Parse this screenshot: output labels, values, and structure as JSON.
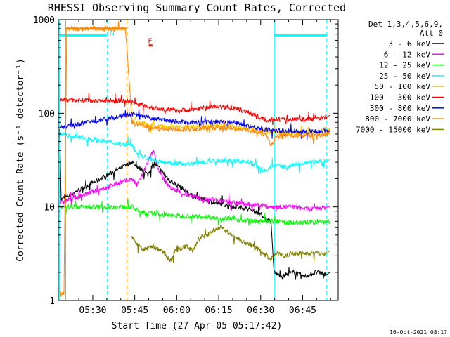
{
  "chart_data": {
    "type": "line",
    "title": "RHESSI Observing Summary Count Rates, Corrected",
    "xlabel": "Start Time (27-Apr-05 05:17:42)",
    "ylabel": "Corrected Count Rate (s⁻¹ detector⁻¹)",
    "x_unit": "minutes",
    "xlim": [
      0,
      100
    ],
    "ylim": [
      1,
      1000
    ],
    "y_scale": "log",
    "x_ticks": [
      {
        "label": "05:30",
        "value": 12.3
      },
      {
        "label": "05:45",
        "value": 27.3
      },
      {
        "label": "06:00",
        "value": 42.3
      },
      {
        "label": "06:15",
        "value": 57.3
      },
      {
        "label": "06:30",
        "value": 72.3
      },
      {
        "label": "06:45",
        "value": 87.3
      }
    ],
    "y_ticks": [
      {
        "label": "1",
        "value": 1
      },
      {
        "label": "10",
        "value": 10
      },
      {
        "label": "100",
        "value": 100
      },
      {
        "label": "1000",
        "value": 1000
      }
    ],
    "legend_header": [
      "Det 1,3,4,5,6,9,",
      "Att 0"
    ],
    "legend_position": "right",
    "timestamp": "16-Oct-2021 08:17",
    "series": [
      {
        "name": "3 - 6 keV",
        "color": "#000000",
        "x": [
          0.5,
          1,
          26.3,
          28,
          30,
          32,
          34,
          36,
          38,
          40,
          44,
          48,
          52,
          56,
          60,
          64,
          68,
          70,
          72,
          74,
          76,
          77,
          80,
          84,
          88,
          92,
          96,
          97
        ],
        "y": [
          68,
          12,
          30,
          27,
          25,
          22,
          30,
          26,
          22,
          19,
          16,
          13,
          12,
          11,
          10.5,
          10,
          9.5,
          9,
          8.5,
          7.5,
          7,
          2,
          1.8,
          2,
          1.8,
          2,
          1.9,
          2
        ]
      },
      {
        "name": "6 - 12 keV",
        "color": "#ff00ff",
        "x": [
          0.5,
          26.3,
          28,
          30,
          32,
          34,
          36,
          38,
          40,
          44,
          48,
          52,
          56,
          60,
          64,
          68,
          72,
          76,
          80,
          84,
          88,
          92,
          96,
          97
        ],
        "y": [
          11,
          20,
          17,
          22,
          30,
          40,
          24,
          19,
          16,
          14,
          13,
          12,
          12,
          11.5,
          11,
          10.5,
          10.5,
          10,
          10,
          10,
          9.5,
          9.5,
          10,
          10
        ]
      },
      {
        "name": "12 - 25 keV",
        "color": "#00ff00",
        "x": [
          0.5,
          26.3,
          30,
          34,
          38,
          42,
          46,
          50,
          54,
          58,
          62,
          66,
          70,
          74,
          78,
          82,
          86,
          90,
          94,
          97
        ],
        "y": [
          10,
          10,
          8.5,
          8.5,
          8.2,
          8,
          8,
          7.8,
          7.8,
          7.5,
          7.5,
          7.2,
          7,
          7,
          7,
          6.8,
          6.8,
          6.8,
          7,
          7
        ]
      },
      {
        "name": "25 - 50 keV",
        "color": "#00ffff",
        "x": [
          0.5,
          26.3,
          28,
          32,
          36,
          40,
          44,
          48,
          52,
          56,
          60,
          64,
          68,
          72,
          74,
          76,
          78,
          80,
          84,
          88,
          92,
          96,
          97
        ],
        "y": [
          60,
          45,
          38,
          33,
          30,
          29,
          29,
          29,
          30,
          31,
          31,
          31,
          30,
          26,
          24,
          27,
          28,
          27,
          28,
          29,
          30,
          31,
          32
        ]
      },
      {
        "name": "50 - 100 keV",
        "color": "#ffcc00",
        "x": [
          26.3,
          30,
          34,
          38,
          42,
          46,
          50,
          54,
          58,
          62,
          66,
          70,
          74,
          78,
          82,
          86,
          90,
          94,
          97
        ],
        "y": [
          85,
          78,
          74,
          72,
          71,
          71,
          72,
          73,
          73,
          72,
          70,
          68,
          64,
          62,
          62,
          62,
          62,
          64,
          66
        ]
      },
      {
        "name": "100 - 300 keV",
        "color": "#ff0000",
        "x": [
          0.5,
          26.3,
          30,
          34,
          38,
          42,
          46,
          50,
          54,
          58,
          62,
          66,
          70,
          72,
          74,
          76,
          78,
          80,
          84,
          88,
          92,
          96,
          97
        ],
        "y": [
          140,
          135,
          122,
          115,
          110,
          107,
          108,
          112,
          117,
          118,
          114,
          107,
          97,
          90,
          85,
          85,
          86,
          86,
          86,
          86,
          88,
          92,
          95
        ]
      },
      {
        "name": "300 - 800 keV",
        "color": "#0000ff",
        "x": [
          0.5,
          26.3,
          30,
          34,
          38,
          42,
          46,
          50,
          54,
          58,
          62,
          66,
          70,
          74,
          78,
          82,
          86,
          90,
          94,
          97
        ],
        "y": [
          70,
          98,
          92,
          88,
          85,
          82,
          80,
          79,
          80,
          82,
          80,
          76,
          71,
          67,
          65,
          64,
          64,
          64,
          64,
          65
        ]
      },
      {
        "name": "800 - 7000 keV",
        "color": "#ff8800",
        "x": [
          0.5,
          2,
          3,
          24,
          26.3,
          30,
          34,
          38,
          42,
          46,
          50,
          54,
          58,
          62,
          66,
          70,
          74,
          76,
          78,
          82,
          86,
          90,
          94,
          97
        ],
        "y": [
          1.2,
          1.2,
          800,
          800,
          80,
          74,
          70,
          68,
          67,
          67,
          68,
          69,
          70,
          69,
          67,
          64,
          60,
          45,
          58,
          58,
          58,
          58,
          59,
          60
        ]
      },
      {
        "name": "7000 - 15000 keV",
        "color": "#808000",
        "x": [
          26.3,
          28,
          30,
          34,
          38,
          40,
          42,
          46,
          48,
          50,
          54,
          56,
          58,
          60,
          62,
          66,
          70,
          72,
          74,
          76,
          78,
          80,
          84,
          88,
          92,
          96,
          97
        ],
        "y": [
          4.8,
          4,
          3.5,
          3.8,
          3.2,
          2.6,
          3.5,
          3.8,
          3.4,
          4.5,
          5.2,
          5.8,
          6.2,
          5.5,
          5,
          4.2,
          3.8,
          3.4,
          3,
          2.8,
          3.2,
          3,
          3.2,
          3.2,
          3.2,
          3.2,
          3.4
        ]
      }
    ],
    "annotations": [
      {
        "label": "N",
        "color": "#00ffff",
        "x": 17.5,
        "y": 680
      },
      {
        "label": "F",
        "color": "#ff0000",
        "x": 31,
        "y": 560
      }
    ],
    "vertical_lines": [
      {
        "x": 0.4,
        "color": "#00ffff",
        "style": "solid"
      },
      {
        "x": 17.5,
        "color": "#00ffff",
        "style": "dashed"
      },
      {
        "x": 77.2,
        "color": "#00ffff",
        "style": "solid"
      },
      {
        "x": 95.8,
        "color": "#00ffff",
        "style": "dashed"
      },
      {
        "x": 2.6,
        "color": "#ff8800",
        "style": "solid"
      },
      {
        "x": 24.5,
        "color": "#ff8800",
        "style": "dashed"
      }
    ],
    "horizontal_bars": [
      {
        "x": [
          0.4,
          17.2
        ],
        "y": 680,
        "color": "#00ffff"
      },
      {
        "x": [
          77.2,
          95.8
        ],
        "y": 680,
        "color": "#00ffff"
      },
      {
        "x": [
          2.6,
          24.5
        ],
        "y": 800,
        "color": "#ff8800"
      },
      {
        "x": [
          32.3,
          33.6
        ],
        "y": 530,
        "color": "#ff0000"
      }
    ]
  }
}
